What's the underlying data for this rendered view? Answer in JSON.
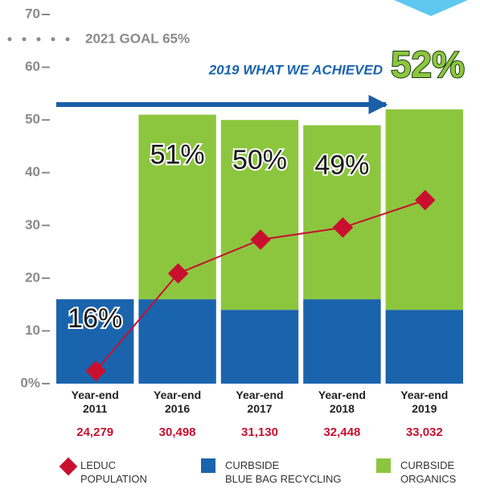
{
  "chart_data": {
    "type": "bar",
    "categories": [
      "Year-end 2011",
      "Year-end 2016",
      "Year-end 2017",
      "Year-end 2018",
      "Year-end 2019"
    ],
    "series": [
      {
        "name": "CURBSIDE BLUE BAG RECYCLING",
        "color": "#1a64ad",
        "values": [
          16,
          16,
          14,
          16,
          14
        ]
      },
      {
        "name": "CURBSIDE ORGANICS",
        "color": "#8cc63f",
        "values": [
          0,
          35,
          36,
          33,
          38
        ]
      },
      {
        "name": "LEDUC POPULATION",
        "type": "line",
        "color": "#c8102e",
        "values": [
          2.4,
          20.9,
          27.3,
          29.6,
          34.8
        ]
      }
    ],
    "bar_labels": [
      "16%",
      "51%",
      "50%",
      "49%",
      "52%"
    ],
    "population_labels": [
      "24,279",
      "30,498",
      "31,130",
      "32,448",
      "33,032"
    ],
    "goal": {
      "value": 65,
      "label": "2021 GOAL 65%"
    },
    "annotation": "2019 WHAT WE ACHIEVED",
    "ylim": [
      0,
      70
    ],
    "yticks": [
      {
        "value": 0,
        "label": "0%"
      },
      10,
      20,
      30,
      40,
      50,
      60,
      70
    ]
  }
}
